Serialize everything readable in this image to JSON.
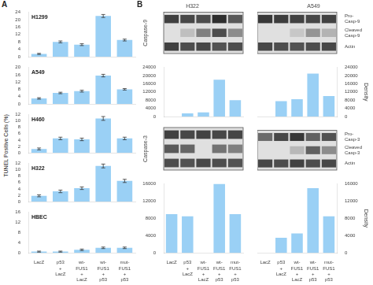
{
  "chart_data": [
    {
      "type": "bar",
      "title": "H1299",
      "ylabel": "TUNEL Positive Cells (%)",
      "annotations": [
        "A"
      ],
      "categories": [
        null,
        null,
        null,
        null,
        null
      ],
      "values": [
        1.5,
        8.0,
        6.5,
        22.0,
        9.0
      ],
      "errors": [
        0.3,
        0.5,
        0.5,
        0.8,
        0.5
      ],
      "ylim": [
        0,
        24
      ],
      "yticks": [
        0,
        4,
        8,
        12,
        16,
        20,
        24
      ],
      "grid": false
    },
    {
      "type": "bar",
      "title": "A549",
      "categories": [
        null,
        null,
        null,
        null,
        null
      ],
      "values": [
        3.0,
        6.0,
        7.0,
        15.5,
        8.0
      ],
      "errors": [
        0.4,
        0.4,
        0.5,
        0.7,
        0.4
      ],
      "ylim": [
        0,
        20
      ],
      "yticks": [
        0,
        4,
        8,
        12,
        16,
        20
      ],
      "grid": false
    },
    {
      "type": "bar",
      "title": "H460",
      "categories": [
        null,
        null,
        null,
        null,
        null
      ],
      "values": [
        1.2,
        4.5,
        4.2,
        10.8,
        4.5
      ],
      "errors": [
        0.3,
        0.4,
        0.4,
        0.6,
        0.4
      ],
      "ylim": [
        0,
        12
      ],
      "yticks": [
        0,
        2,
        4,
        6,
        8,
        10,
        12
      ],
      "grid": false
    },
    {
      "type": "bar",
      "title": "H322",
      "categories": [
        null,
        null,
        null,
        null,
        null
      ],
      "values": [
        1.8,
        3.2,
        4.2,
        11.2,
        6.5
      ],
      "errors": [
        0.3,
        0.4,
        0.4,
        0.6,
        0.5
      ],
      "ylim": [
        0,
        12
      ],
      "yticks": [
        0,
        2,
        4,
        6,
        8,
        10,
        12
      ],
      "grid": false
    },
    {
      "type": "bar",
      "title": "HBEC",
      "categories": [
        "LacZ",
        "p53\n+\nLacZ",
        "wt-\nFUS1\n+\nLacZ",
        "wt-\nFUS1\n+\np53",
        "mut-\nFUS1\n+\np53"
      ],
      "values": [
        0.5,
        0.5,
        1.2,
        2.0,
        2.0
      ],
      "errors": [
        0.2,
        0.2,
        0.3,
        0.3,
        0.3
      ],
      "ylim": [
        0,
        16
      ],
      "yticks": [
        0,
        4,
        8,
        12,
        16
      ],
      "grid": false
    },
    {
      "type": "heatmap",
      "title": "H322",
      "ylabel": "Caspase-9",
      "annotations": [
        "B"
      ],
      "categories": [
        null,
        null,
        null,
        null,
        null
      ],
      "rows": [
        null,
        null,
        null
      ],
      "cells": [
        [
          0.75,
          0.72,
          0.7,
          0.82,
          0.65
        ],
        [
          0.0,
          0.25,
          0.5,
          0.7,
          0.45
        ],
        [
          0.75,
          0.7,
          0.72,
          0.68,
          0.7
        ]
      ]
    },
    {
      "type": "heatmap",
      "title": "A549",
      "categories": [
        null,
        null,
        null,
        null,
        null
      ],
      "rows": [
        "Pro-\nCasp-9",
        "Cleaved\nCasp-9",
        "Actin"
      ],
      "cells": [
        [
          0.78,
          0.76,
          0.74,
          0.72,
          0.74
        ],
        [
          0.0,
          0.0,
          0.22,
          0.42,
          0.3
        ],
        [
          0.72,
          0.7,
          0.68,
          0.7,
          0.72
        ]
      ]
    },
    {
      "type": "bar",
      "categories": [
        null,
        null,
        null,
        null,
        null
      ],
      "values": [
        0,
        1500,
        2000,
        18000,
        8000
      ],
      "ylim": [
        0,
        24000
      ],
      "yticks": [
        0,
        4000,
        8000,
        12000,
        16000,
        20000,
        24000
      ],
      "grid": false
    },
    {
      "type": "bar",
      "ylabel": "Density",
      "categories": [
        null,
        null,
        null,
        null,
        null
      ],
      "values": [
        0,
        7500,
        8500,
        21000,
        10000
      ],
      "ylim": [
        0,
        24000
      ],
      "yticks": [
        0,
        4000,
        8000,
        12000,
        16000,
        20000,
        24000
      ],
      "grid": false
    },
    {
      "type": "heatmap",
      "ylabel": "Caspase-3",
      "categories": [
        null,
        null,
        null,
        null,
        null
      ],
      "rows": [
        null,
        null,
        null
      ],
      "cells": [
        [
          0.75,
          0.72,
          0.74,
          0.72,
          0.73
        ],
        [
          0.65,
          0.6,
          0.0,
          0.55,
          0.5
        ],
        [
          0.7,
          0.68,
          0.72,
          0.7,
          0.68
        ]
      ]
    },
    {
      "type": "heatmap",
      "categories": [
        null,
        null,
        null,
        null,
        null
      ],
      "rows": [
        "Pro-\nCasp-3",
        "Cleaved\nCasp-3",
        "Actin"
      ],
      "cells": [
        [
          0.58,
          0.72,
          0.78,
          0.62,
          0.68
        ],
        [
          0.0,
          0.0,
          0.28,
          0.62,
          0.45
        ],
        [
          0.72,
          0.7,
          0.74,
          0.7,
          0.72
        ]
      ]
    },
    {
      "type": "bar",
      "categories": [
        "LacZ",
        "p53\n+\nLacZ",
        "wt-\nFUS1\n+\nLacZ",
        "wt-\nFUS1\n+\np53",
        "mut-\nFUS1\n+\np53"
      ],
      "values": [
        9000,
        8500,
        0,
        16000,
        9000
      ],
      "ylim": [
        0,
        16000
      ],
      "yticks": [
        0,
        4000,
        8000,
        12000,
        16000
      ],
      "grid": false
    },
    {
      "type": "bar",
      "ylabel": "Density",
      "categories": [
        "LacZ",
        "p53\n+\nLacZ",
        "wt-\nFUS1\n+\nLacZ",
        "wt-\nFUS1\n+\np53",
        "mut-\nFUS1\n+\np53"
      ],
      "values": [
        0,
        3500,
        4500,
        15000,
        8500
      ],
      "ylim": [
        0,
        16000
      ],
      "yticks": [
        0,
        4000,
        8000,
        12000,
        16000
      ],
      "grid": false
    }
  ]
}
